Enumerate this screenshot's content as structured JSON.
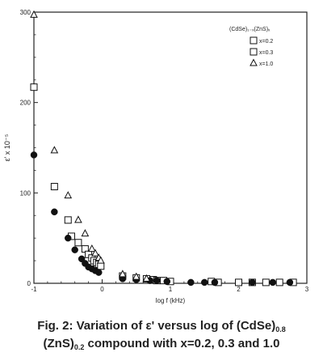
{
  "chart_data": {
    "type": "scatter",
    "title": "",
    "xlabel": "log f (kHz)",
    "ylabel": "ε' x 10⁻⁵",
    "xlim": [
      -1,
      3
    ],
    "ylim": [
      0,
      300
    ],
    "x_ticks": [
      "-1",
      "0",
      "1",
      "2",
      "3"
    ],
    "y_ticks": [
      "0",
      "100",
      "200",
      "300"
    ],
    "grid": false,
    "legend_position": "top-right",
    "legend_title": "(CdSe)₁₋ₓ(ZnS)ₓ",
    "series": [
      {
        "name": "x=0.2",
        "marker": "open-square",
        "x": [
          -1,
          -0.7,
          -0.5,
          -0.45,
          -0.35,
          -0.25,
          -0.2,
          -0.15,
          -0.12,
          -0.08,
          -0.05,
          -0.02,
          0.3,
          0.5,
          0.65,
          0.75,
          0.8,
          0.9,
          1.0,
          1.6,
          1.7,
          2.0,
          2.2,
          2.4,
          2.6,
          2.8
        ],
        "y": [
          217,
          107,
          70,
          52,
          45,
          38,
          32,
          28,
          25,
          23,
          21,
          19,
          8,
          6,
          5,
          4,
          3,
          3,
          2,
          2,
          1,
          1,
          1,
          1,
          1,
          1
        ]
      },
      {
        "name": "x=0.3",
        "marker": "filled-circle",
        "x": [
          -1,
          -0.7,
          -0.5,
          -0.4,
          -0.3,
          -0.25,
          -0.2,
          -0.15,
          -0.1,
          -0.05,
          0.3,
          0.5,
          0.7,
          0.8,
          0.95,
          1.3,
          1.5,
          1.65,
          2.2,
          2.5,
          2.75
        ],
        "y": [
          142,
          79,
          50,
          37,
          27,
          22,
          18,
          16,
          14,
          12,
          5,
          4,
          3,
          3,
          2,
          1,
          1,
          1,
          1,
          1,
          1
        ]
      },
      {
        "name": "x=1.0",
        "marker": "open-triangle",
        "x": [
          -1,
          -0.7,
          -0.5,
          -0.35,
          -0.25,
          -0.15,
          -0.1,
          -0.05,
          -0.02,
          0.3,
          0.5,
          0.65
        ],
        "y": [
          297,
          147,
          97,
          70,
          55,
          38,
          33,
          28,
          25,
          10,
          7,
          5
        ]
      }
    ]
  },
  "caption": {
    "line1_prefix": "Fig. 2: Variation of ε' versus log of (CdSe)",
    "line1_sub": "0.8",
    "line2_prefix": "(ZnS)",
    "line2_sub": "0.2",
    "line2_suffix": " compound with x=0.2, 0.3 and 1.0"
  }
}
